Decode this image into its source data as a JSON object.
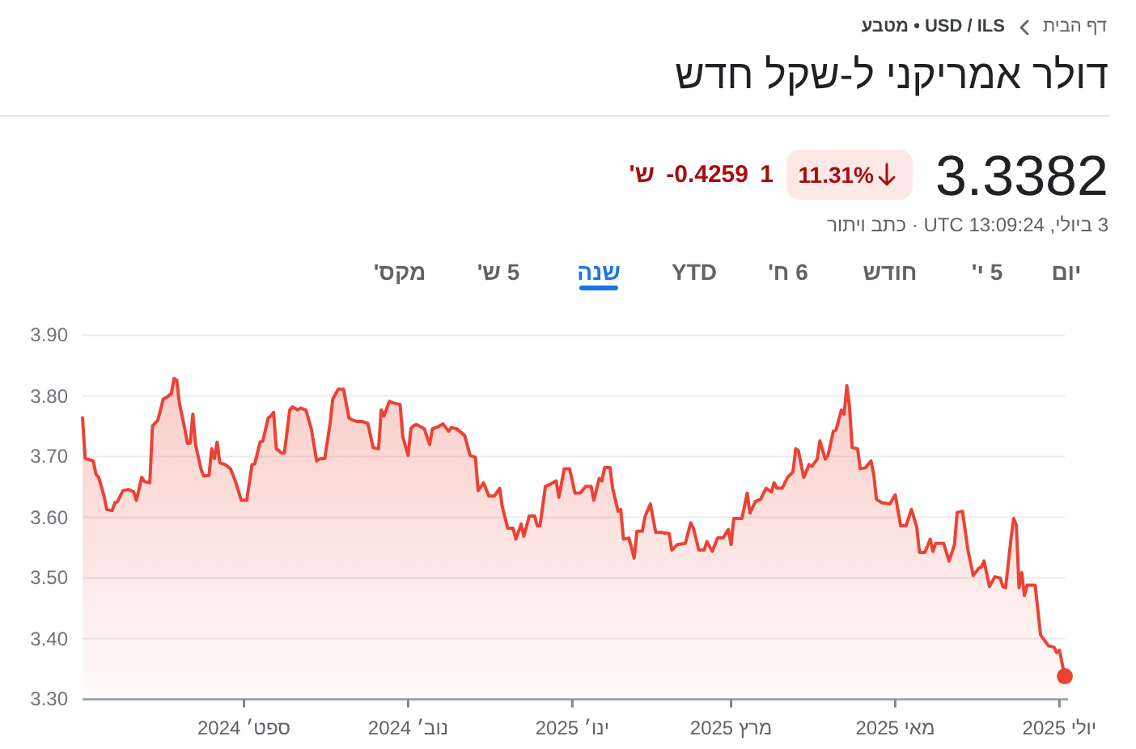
{
  "chart_data": {
    "type": "area",
    "title": "דולר אמריקני ל-שקל חדש",
    "annotations": [
      "דף הבית",
      "USD / ILS • מטבע",
      "3.3382",
      "11.31%",
      "1 -0.4259 ש'",
      "3 ביולי, 13:09:24 UTC · כתב ויתור",
      "יום",
      "5 י'",
      "חודש",
      "6 ח'",
      "YTD",
      "שנה",
      "5 ש'",
      "מקס'"
    ],
    "x": [
      "2024-07-03",
      "2024-07-04",
      "2024-07-07",
      "2024-07-08",
      "2024-07-09",
      "2024-07-11",
      "2024-07-12",
      "2024-07-14",
      "2024-07-15",
      "2024-07-16",
      "2024-07-18",
      "2024-07-20",
      "2024-07-22",
      "2024-07-23",
      "2024-07-25",
      "2024-07-26",
      "2024-07-28",
      "2024-07-29",
      "2024-07-31",
      "2024-08-02",
      "2024-08-03",
      "2024-08-05",
      "2024-08-06",
      "2024-08-07",
      "2024-08-08",
      "2024-08-10",
      "2024-08-11",
      "2024-08-12",
      "2024-08-13",
      "2024-08-14",
      "2024-08-16",
      "2024-08-17",
      "2024-08-19",
      "2024-08-20",
      "2024-08-21",
      "2024-08-22",
      "2024-08-23",
      "2024-08-25",
      "2024-08-27",
      "2024-08-29",
      "2024-08-31",
      "2024-09-02",
      "2024-09-04",
      "2024-09-05",
      "2024-09-07",
      "2024-09-08",
      "2024-09-10",
      "2024-09-11",
      "2024-09-12",
      "2024-09-13",
      "2024-09-15",
      "2024-09-16",
      "2024-09-18",
      "2024-09-19",
      "2024-09-21",
      "2024-09-22",
      "2024-09-24",
      "2024-09-26",
      "2024-09-28",
      "2024-09-29",
      "2024-10-01",
      "2024-10-03",
      "2024-10-04",
      "2024-10-06",
      "2024-10-08",
      "2024-10-10",
      "2024-10-11",
      "2024-10-13",
      "2024-10-15",
      "2024-10-17",
      "2024-10-19",
      "2024-10-21",
      "2024-10-22",
      "2024-10-23",
      "2024-10-25",
      "2024-10-27",
      "2024-10-29",
      "2024-10-30",
      "2024-11-01",
      "2024-11-02",
      "2024-11-03",
      "2024-11-04",
      "2024-11-07",
      "2024-11-09",
      "2024-11-10",
      "2024-11-12",
      "2024-11-14",
      "2024-11-16",
      "2024-11-17",
      "2024-11-19",
      "2024-11-22",
      "2024-11-24",
      "2024-11-26",
      "2024-11-27",
      "2024-11-29",
      "2024-12-01",
      "2024-12-03",
      "2024-12-05",
      "2024-12-06",
      "2024-12-08",
      "2024-12-10",
      "2024-12-11",
      "2024-12-13",
      "2024-12-14",
      "2024-12-16",
      "2024-12-18",
      "2024-12-19",
      "2024-12-20",
      "2024-12-22",
      "2024-12-24",
      "2024-12-26",
      "2024-12-27",
      "2024-12-29",
      "2024-12-31",
      "2025-01-02",
      "2025-01-04",
      "2025-01-06",
      "2025-01-08",
      "2025-01-09",
      "2025-01-11",
      "2025-01-12",
      "2025-01-13",
      "2025-01-15",
      "2025-01-16",
      "2025-01-18",
      "2025-01-19",
      "2025-01-20",
      "2025-01-22",
      "2025-01-24",
      "2025-01-25",
      "2025-01-27",
      "2025-01-28",
      "2025-01-30",
      "2025-02-01",
      "2025-02-03",
      "2025-02-06",
      "2025-02-07",
      "2025-02-09",
      "2025-02-12",
      "2025-02-14",
      "2025-02-15",
      "2025-02-17",
      "2025-02-19",
      "2025-02-20",
      "2025-02-22",
      "2025-02-24",
      "2025-02-26",
      "2025-02-28",
      "2025-03-01",
      "2025-03-02",
      "2025-03-05",
      "2025-03-07",
      "2025-03-08",
      "2025-03-10",
      "2025-03-12",
      "2025-03-14",
      "2025-03-16",
      "2025-03-17",
      "2025-03-18",
      "2025-03-20",
      "2025-03-22",
      "2025-03-24",
      "2025-03-25",
      "2025-03-26",
      "2025-03-28",
      "2025-03-30",
      "2025-03-31",
      "2025-04-02",
      "2025-04-03",
      "2025-04-05",
      "2025-04-06",
      "2025-04-08",
      "2025-04-09",
      "2025-04-11",
      "2025-04-12",
      "2025-04-13",
      "2025-04-14",
      "2025-04-15",
      "2025-04-17",
      "2025-04-18",
      "2025-04-20",
      "2025-04-22",
      "2025-04-23",
      "2025-04-24",
      "2025-04-26",
      "2025-04-29",
      "2025-05-01",
      "2025-05-03",
      "2025-05-05",
      "2025-05-07",
      "2025-05-09",
      "2025-05-10",
      "2025-05-12",
      "2025-05-14",
      "2025-05-15",
      "2025-05-16",
      "2025-05-19",
      "2025-05-21",
      "2025-05-23",
      "2025-05-24",
      "2025-05-26",
      "2025-05-28",
      "2025-05-30",
      "2025-06-01",
      "2025-06-02",
      "2025-06-03",
      "2025-06-05",
      "2025-06-07",
      "2025-06-09",
      "2025-06-10",
      "2025-06-11",
      "2025-06-13",
      "2025-06-14",
      "2025-06-15",
      "2025-06-16",
      "2025-06-17",
      "2025-06-18",
      "2025-06-19",
      "2025-06-22",
      "2025-06-24",
      "2025-06-25",
      "2025-06-27",
      "2025-06-29",
      "2025-06-30",
      "2025-07-01",
      "2025-07-03"
    ],
    "series": [
      {
        "color": "#ea4335",
        "values": [
          3.764,
          3.697,
          3.693,
          3.671,
          3.666,
          3.635,
          3.613,
          3.611,
          3.624,
          3.626,
          3.644,
          3.646,
          3.642,
          3.628,
          3.666,
          3.659,
          3.657,
          3.751,
          3.76,
          3.795,
          3.797,
          3.804,
          3.829,
          3.826,
          3.788,
          3.746,
          3.722,
          3.722,
          3.77,
          3.72,
          3.68,
          3.668,
          3.669,
          3.713,
          3.697,
          3.724,
          3.69,
          3.687,
          3.68,
          3.657,
          3.628,
          3.628,
          3.687,
          3.688,
          3.724,
          3.726,
          3.764,
          3.767,
          3.773,
          3.713,
          3.706,
          3.706,
          3.777,
          3.782,
          3.777,
          3.78,
          3.777,
          3.746,
          3.693,
          3.696,
          3.697,
          3.755,
          3.795,
          3.811,
          3.811,
          3.764,
          3.761,
          3.758,
          3.758,
          3.755,
          3.715,
          3.713,
          3.777,
          3.767,
          3.791,
          3.788,
          3.786,
          3.733,
          3.702,
          3.746,
          3.751,
          3.753,
          3.746,
          3.72,
          3.746,
          3.749,
          3.754,
          3.742,
          3.748,
          3.746,
          3.735,
          3.702,
          3.699,
          3.644,
          3.657,
          3.635,
          3.635,
          3.648,
          3.617,
          3.582,
          3.582,
          3.564,
          3.589,
          3.569,
          3.602,
          3.602,
          3.586,
          3.586,
          3.651,
          3.655,
          3.66,
          3.633,
          3.68,
          3.68,
          3.64,
          3.64,
          3.651,
          3.651,
          3.628,
          3.664,
          3.66,
          3.682,
          3.682,
          3.648,
          3.61,
          3.613,
          3.564,
          3.566,
          3.533,
          3.577,
          3.577,
          3.601,
          3.622,
          3.575,
          3.575,
          3.573,
          3.546,
          3.555,
          3.557,
          3.591,
          3.582,
          3.546,
          3.546,
          3.56,
          3.544,
          3.566,
          3.566,
          3.58,
          3.555,
          3.598,
          3.598,
          3.64,
          3.607,
          3.626,
          3.63,
          3.648,
          3.642,
          3.657,
          3.648,
          3.648,
          3.666,
          3.675,
          3.713,
          3.71,
          3.666,
          3.687,
          3.684,
          3.696,
          3.726,
          3.696,
          3.702,
          3.742,
          3.744,
          3.777,
          3.77,
          3.817,
          3.782,
          3.715,
          3.713,
          3.68,
          3.682,
          3.693,
          3.671,
          3.63,
          3.624,
          3.622,
          3.637,
          3.586,
          3.586,
          3.613,
          3.584,
          3.542,
          3.542,
          3.564,
          3.544,
          3.557,
          3.557,
          3.528,
          3.555,
          3.608,
          3.61,
          3.546,
          3.504,
          3.516,
          3.518,
          3.528,
          3.486,
          3.502,
          3.5,
          3.486,
          3.484,
          3.564,
          3.598,
          3.587,
          3.484,
          3.509,
          3.471,
          3.488,
          3.488,
          3.406,
          3.4,
          3.388,
          3.386,
          3.377,
          3.381,
          3.338
        ]
      },
      {
        "type": "scatter",
        "x": [
          "2025-07-03"
        ],
        "values": [
          3.338
        ],
        "color": "#ea4335",
        "marker": "circle"
      }
    ],
    "xlim": [
      "2024-07-03",
      "2025-07-03"
    ],
    "xticks": [
      {
        "value": "2024-09-01",
        "label": "ספט׳ 2024"
      },
      {
        "value": "2024-11-01",
        "label": "נוב׳ 2024"
      },
      {
        "value": "2025-01-01",
        "label": "ינו׳ 2025"
      },
      {
        "value": "2025-03-01",
        "label": "מרץ 2025"
      },
      {
        "value": "2025-05-01",
        "label": "מאי 2025"
      },
      {
        "value": "2025-07-01",
        "label": "יולי 2025"
      }
    ],
    "ylim": [
      3.3,
      3.9
    ],
    "yticks": [
      {
        "value": 3.3,
        "label": "3.30"
      },
      {
        "value": 3.4,
        "label": "3.40"
      },
      {
        "value": 3.5,
        "label": "3.50"
      },
      {
        "value": 3.6,
        "label": "3.60"
      },
      {
        "value": 3.7,
        "label": "3.70"
      },
      {
        "value": 3.8,
        "label": "3.80"
      },
      {
        "value": 3.9,
        "label": "3.90"
      }
    ],
    "grid": "y"
  }
}
